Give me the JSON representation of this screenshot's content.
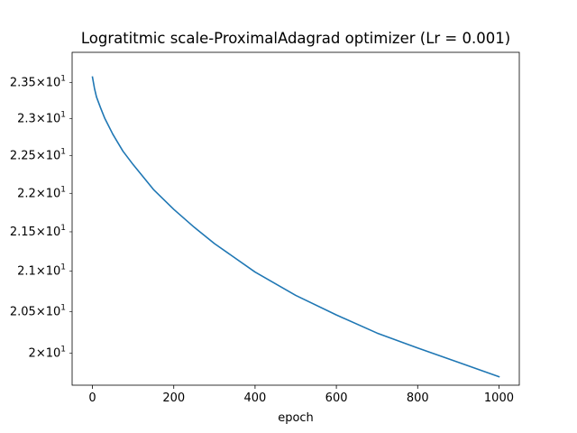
{
  "chart_data": {
    "type": "line",
    "title": "Logratitmic scale-ProximalAdagrad optimizer (Lr = 0.001)",
    "xlabel": "epoch",
    "ylabel": "",
    "yscale": "log",
    "grid": false,
    "legend": "none",
    "xlim": [
      -50,
      1050
    ],
    "ylim": [
      19.62,
      23.93
    ],
    "x_ticks": [
      0,
      200,
      400,
      600,
      800,
      1000
    ],
    "x_tick_labels": [
      "0",
      "200",
      "400",
      "600",
      "800",
      "1000"
    ],
    "y_ticks": [
      {
        "value": 23.5,
        "mantissa": "2.35"
      },
      {
        "value": 23.0,
        "mantissa": "2.3"
      },
      {
        "value": 22.5,
        "mantissa": "2.25"
      },
      {
        "value": 22.0,
        "mantissa": "2.2"
      },
      {
        "value": 21.5,
        "mantissa": "2.15"
      },
      {
        "value": 21.0,
        "mantissa": "2.1"
      },
      {
        "value": 20.5,
        "mantissa": "2.05"
      },
      {
        "value": 20.0,
        "mantissa": "2"
      }
    ],
    "y_tick_suffix": "10",
    "y_tick_exponent": "1",
    "series": [
      {
        "color": "#1f77b4",
        "x": [
          0,
          5,
          10,
          20,
          30,
          50,
          75,
          100,
          150,
          200,
          250,
          300,
          400,
          500,
          600,
          700,
          800,
          900,
          1000
        ],
        "y": [
          23.58,
          23.42,
          23.3,
          23.15,
          23.01,
          22.79,
          22.56,
          22.38,
          22.05,
          21.79,
          21.56,
          21.35,
          20.99,
          20.7,
          20.46,
          20.24,
          20.06,
          19.89,
          19.72
        ]
      }
    ]
  }
}
